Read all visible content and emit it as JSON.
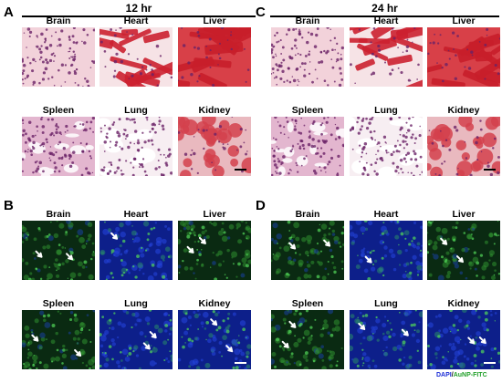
{
  "panels": [
    {
      "letter": "A",
      "title": "12 hr",
      "organs": [
        "Brain",
        "Heart",
        "Liver",
        "Spleen",
        "Lung",
        "Kidney"
      ],
      "stain": "he"
    },
    {
      "letter": "C",
      "title": "24 hr",
      "organs": [
        "Brain",
        "Heart",
        "Liver",
        "Spleen",
        "Lung",
        "Kidney"
      ],
      "stain": "he"
    },
    {
      "letter": "B",
      "title": "",
      "organs": [
        "Brain",
        "Heart",
        "Liver",
        "Spleen",
        "Lung",
        "Kidney"
      ],
      "stain": "fluor"
    },
    {
      "letter": "D",
      "title": "",
      "organs": [
        "Brain",
        "Heart",
        "Liver",
        "Spleen",
        "Lung",
        "Kidney"
      ],
      "stain": "fluor"
    }
  ],
  "legend": {
    "dapi": "DAPI",
    "separator": "/",
    "aunp": "AuNP-FITC"
  },
  "colors": {
    "he_background": "#f2d2da",
    "he_nuclei": "#7a2a76",
    "he_muscle": "#d22a34",
    "fluor_background": "#061028",
    "dapi_blue": "#1b3fd8",
    "fitc_green": "#3cc43c",
    "arrow": "#ffffff",
    "legend_blue": "#1a2bd6",
    "legend_green": "#22a02a"
  }
}
